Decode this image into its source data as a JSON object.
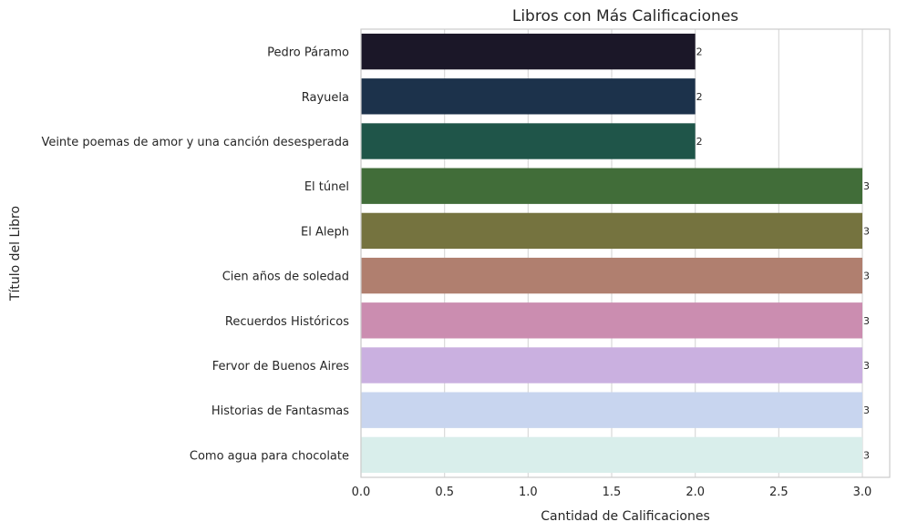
{
  "chart_data": {
    "type": "bar",
    "orientation": "horizontal",
    "title": "Libros con Más Calificaciones",
    "xlabel": "Cantidad de Calificaciones",
    "ylabel": "Título del Libro",
    "xlim": [
      0,
      3.15
    ],
    "xticks": [
      "0.0",
      "0.5",
      "1.0",
      "1.5",
      "2.0",
      "2.5",
      "3.0"
    ],
    "xtick_values": [
      0,
      0.5,
      1.0,
      1.5,
      2.0,
      2.5,
      3.0
    ],
    "grid": true,
    "categories": [
      "Pedro Páramo",
      "Rayuela",
      "Veinte poemas de amor y una canción desesperada",
      "El túnel",
      "El Aleph",
      "Cien años de soledad",
      "Recuerdos Históricos",
      "Fervor de Buenos Aires",
      "Historias de Fantasmas",
      "Como agua para chocolate"
    ],
    "values": [
      2,
      2,
      2,
      3,
      3,
      3,
      3,
      3,
      3,
      3
    ],
    "data_labels": [
      "2",
      "2",
      "2",
      "3",
      "3",
      "3",
      "3",
      "3",
      "3",
      "3"
    ],
    "colors": [
      "#1b1728",
      "#1c324b",
      "#1f5549",
      "#416d39",
      "#75733f",
      "#b07f6f",
      "#cb8db0",
      "#cab0e0",
      "#c8d5ef",
      "#d9eeeb"
    ]
  }
}
